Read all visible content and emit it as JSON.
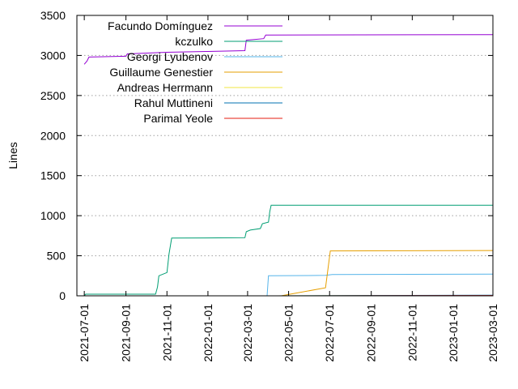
{
  "chart_data": {
    "type": "line",
    "title": "",
    "xlabel": "",
    "ylabel": "Lines",
    "x_type": "date",
    "xlim": [
      "2021-06-20",
      "2023-03-01"
    ],
    "ylim": [
      0,
      3500
    ],
    "x_ticks": [
      "2021-07-01",
      "2021-09-01",
      "2021-11-01",
      "2022-01-01",
      "2022-03-01",
      "2022-05-01",
      "2022-07-01",
      "2022-09-01",
      "2022-11-01",
      "2023-01-01",
      "2023-03-01"
    ],
    "y_ticks": [
      0,
      500,
      1000,
      1500,
      2000,
      2500,
      3000,
      3500
    ],
    "grid": true,
    "legend_position": "top-left",
    "series": [
      {
        "name": "Facundo Domínguez",
        "color": "#9400d3",
        "points": [
          [
            "2021-07-01",
            2890
          ],
          [
            "2021-07-05",
            2930
          ],
          [
            "2021-07-08",
            2980
          ],
          [
            "2021-09-01",
            2990
          ],
          [
            "2021-09-03",
            3020
          ],
          [
            "2021-11-01",
            3040
          ],
          [
            "2022-01-01",
            3050
          ],
          [
            "2022-02-25",
            3060
          ],
          [
            "2022-02-27",
            3190
          ],
          [
            "2022-03-25",
            3210
          ],
          [
            "2022-03-28",
            3255
          ],
          [
            "2023-03-01",
            3260
          ]
        ]
      },
      {
        "name": "kczulko",
        "color": "#009e73",
        "points": [
          [
            "2021-07-01",
            0
          ],
          [
            "2021-07-03",
            20
          ],
          [
            "2021-10-15",
            20
          ],
          [
            "2021-10-18",
            110
          ],
          [
            "2021-10-20",
            250
          ],
          [
            "2021-11-01",
            290
          ],
          [
            "2021-11-04",
            520
          ],
          [
            "2021-11-08",
            720
          ],
          [
            "2022-02-25",
            725
          ],
          [
            "2022-02-27",
            800
          ],
          [
            "2022-03-05",
            820
          ],
          [
            "2022-03-20",
            840
          ],
          [
            "2022-03-23",
            900
          ],
          [
            "2022-04-01",
            920
          ],
          [
            "2022-04-03",
            1050
          ],
          [
            "2022-04-05",
            1130
          ],
          [
            "2023-03-01",
            1130
          ]
        ]
      },
      {
        "name": "Georgi Lyubenov",
        "color": "#56b4e9",
        "points": [
          [
            "2022-03-30",
            0
          ],
          [
            "2022-04-01",
            250
          ],
          [
            "2022-06-25",
            255
          ],
          [
            "2022-07-05",
            265
          ],
          [
            "2023-03-01",
            270
          ]
        ]
      },
      {
        "name": "Guillaume Genestier",
        "color": "#e69f00",
        "points": [
          [
            "2022-04-20",
            0
          ],
          [
            "2022-06-25",
            100
          ],
          [
            "2022-07-02",
            560
          ],
          [
            "2023-03-01",
            565
          ]
        ]
      },
      {
        "name": "Andreas Herrmann",
        "color": "#f0e442",
        "points": [
          [
            "2022-04-10",
            0
          ],
          [
            "2023-03-01",
            5
          ]
        ]
      },
      {
        "name": "Rahul Muttineni",
        "color": "#0072b2",
        "points": [
          [
            "2022-04-12",
            0
          ],
          [
            "2023-03-01",
            8
          ]
        ]
      },
      {
        "name": "Parimal Yeole",
        "color": "#e51e10",
        "points": [
          [
            "2022-04-15",
            0
          ],
          [
            "2023-03-01",
            4
          ]
        ]
      }
    ]
  }
}
